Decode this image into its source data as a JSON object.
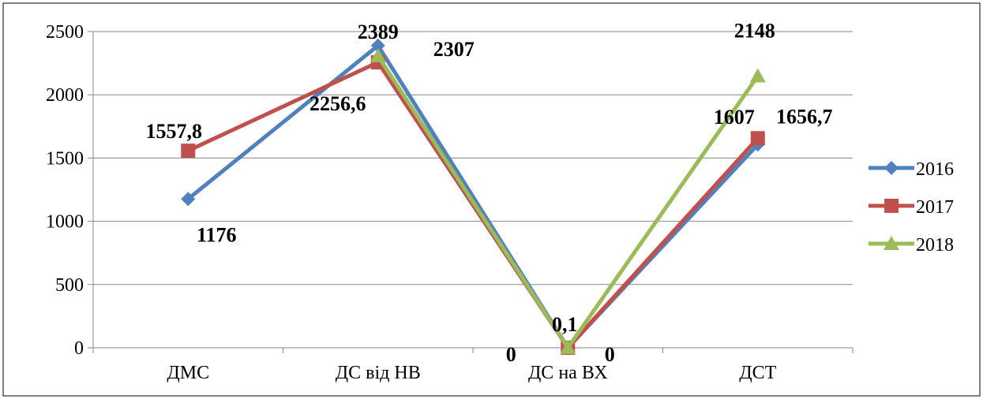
{
  "chart_data": {
    "type": "line",
    "title": "",
    "xlabel": "",
    "ylabel": "",
    "categories": [
      "ДМС",
      "ДС від НВ",
      "ДС на ВХ",
      "ДСТ"
    ],
    "ylim": [
      0,
      2500
    ],
    "yticks": [
      0,
      500,
      1000,
      1500,
      2000,
      2500
    ],
    "grid": true,
    "legend_position": "right",
    "series": [
      {
        "name": "2016",
        "values": [
          1176,
          2389,
          0,
          1607
        ],
        "color": "#4F81BD",
        "marker": "diamond",
        "labels": [
          "1176",
          "2389",
          "0",
          "1607"
        ]
      },
      {
        "name": "2017",
        "values": [
          1557.8,
          2256.6,
          0.1,
          1656.7
        ],
        "color": "#C0504D",
        "marker": "square",
        "labels": [
          "1557,8",
          "2256,6",
          "0,1",
          "1656,7"
        ]
      },
      {
        "name": "2018",
        "values": [
          null,
          2307,
          0,
          2148
        ],
        "color": "#9BBB59",
        "marker": "triangle",
        "labels": [
          "",
          "2307",
          "0",
          "2148"
        ]
      }
    ]
  }
}
